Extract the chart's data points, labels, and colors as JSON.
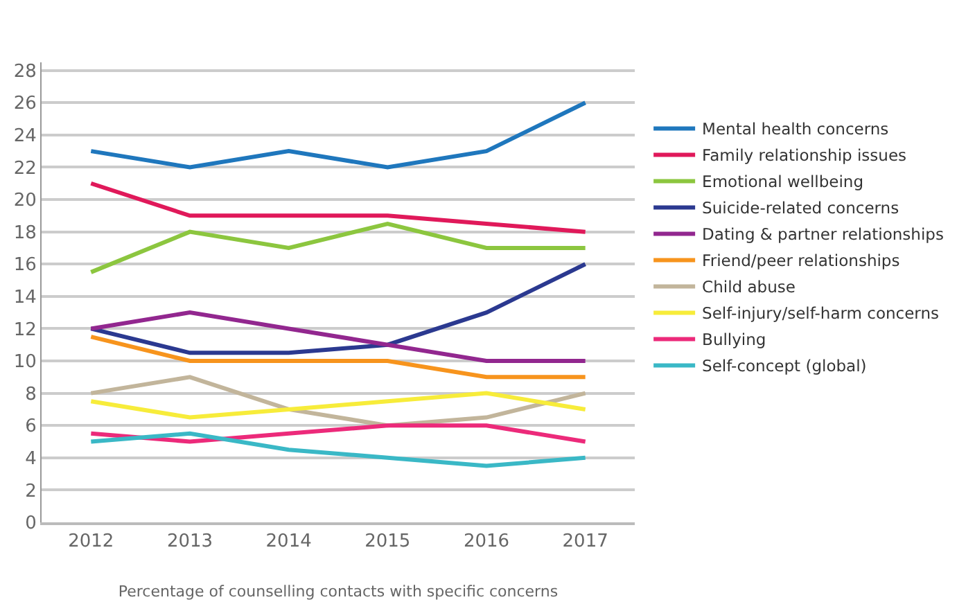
{
  "chart_data": {
    "type": "line",
    "xlabel": "Percentage of counselling contacts with specific concerns",
    "categories": [
      "2012",
      "2013",
      "2014",
      "2015",
      "2016",
      "2017"
    ],
    "series": [
      {
        "name": "Mental health concerns",
        "color": "#1f77bd",
        "values": [
          23,
          22,
          23,
          22,
          23,
          26
        ]
      },
      {
        "name": "Family relationship issues",
        "color": "#e0195a",
        "values": [
          21,
          19,
          19,
          19,
          18.5,
          18
        ]
      },
      {
        "name": "Emotional wellbeing",
        "color": "#8cc63f",
        "values": [
          15.5,
          18,
          17,
          18.5,
          17,
          17
        ]
      },
      {
        "name": "Suicide-related concerns",
        "color": "#2b3990",
        "values": [
          12,
          10.5,
          10.5,
          11,
          13,
          16
        ]
      },
      {
        "name": "Dating & partner relationships",
        "color": "#92278f",
        "values": [
          12,
          13,
          12,
          11,
          10,
          10
        ]
      },
      {
        "name": "Friend/peer relationships",
        "color": "#f7941d",
        "values": [
          11.5,
          10,
          10,
          10,
          9,
          9
        ]
      },
      {
        "name": "Child abuse",
        "color": "#c2b59b",
        "values": [
          8,
          9,
          7,
          6,
          6.5,
          8
        ]
      },
      {
        "name": "Self-injury/self-harm concerns",
        "color": "#f7ec3a",
        "values": [
          7.5,
          6.5,
          7,
          7.5,
          8,
          7
        ]
      },
      {
        "name": "Bullying",
        "color": "#ec2a7a",
        "values": [
          5.5,
          5,
          5.5,
          6,
          6,
          5
        ]
      },
      {
        "name": "Self-concept (global)",
        "color": "#3ab8c6",
        "values": [
          5,
          5.5,
          4.5,
          4,
          3.5,
          4
        ]
      }
    ],
    "ylim": [
      0,
      28.5
    ],
    "yticks": [
      0,
      2,
      4,
      6,
      8,
      10,
      12,
      14,
      16,
      18,
      20,
      22,
      24,
      26,
      28
    ],
    "grid": "y",
    "legend": "right",
    "marker": "none",
    "line_style": "solid"
  }
}
